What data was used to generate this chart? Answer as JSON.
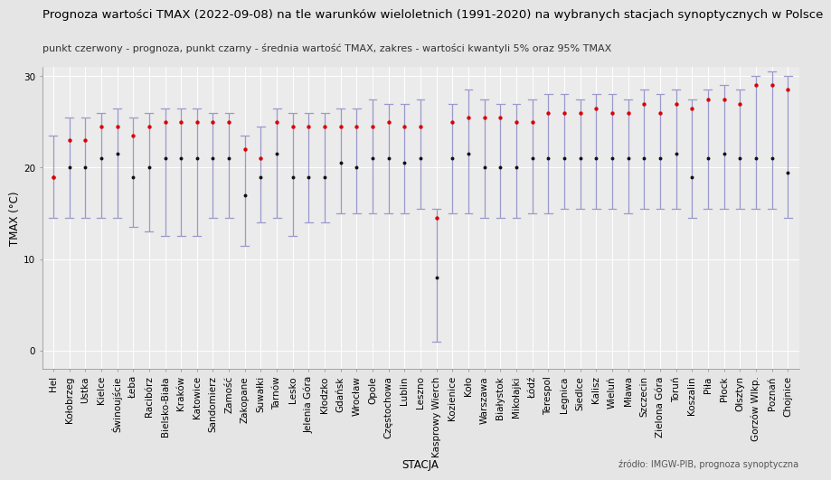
{
  "title": "Prognoza wartości TMAX (2022-09-08) na tle warunków wieloletnich (1991-2020) na wybranych stacjach synoptycznych w Polsce",
  "subtitle": "punkt czerwony - prognoza, punkt czarny - średnia wartość TMAX, zakres - wartości kwantyli 5% oraz 95% TMAX",
  "xlabel": "STACJA",
  "ylabel": "TMAX (°C)",
  "source": "źródło: IMGW-PIB, prognoza synoptyczna",
  "ylim": [
    -2,
    31
  ],
  "yticks": [
    0,
    10,
    20,
    30
  ],
  "fig_bg": "#e5e5e5",
  "plot_bg": "#ebebeb",
  "grid_color": "#ffffff",
  "stations": [
    "Hel",
    "Kołobrzeg",
    "Ustka",
    "Kielce",
    "Świnoujście",
    "Łeba",
    "Racibórz",
    "Bielsko-Biała",
    "Kraków",
    "Katowice",
    "Sandomierz",
    "Zamość",
    "Zakopane",
    "Suwałki",
    "Tarnów",
    "Lesko",
    "Jelenia Góra",
    "Kłodzko",
    "Gdańsk",
    "Wrocław",
    "Opole",
    "Częstochowa",
    "Lublin",
    "Leszno",
    "Kasprowy Wierch",
    "Kozienice",
    "Koło",
    "Warszawa",
    "Białystok",
    "Mikołajki",
    "Łódź",
    "Terespol",
    "Legnica",
    "Siedlce",
    "Kalisz",
    "Wieluń",
    "Mława",
    "Szczecin",
    "Zielona Góra",
    "Toruń",
    "Koszalin",
    "Piła",
    "Płock",
    "Olsztyn",
    "Gorzów Wlkp.",
    "Poznań",
    "Chojnice"
  ],
  "forecast": [
    19.0,
    23.0,
    23.0,
    24.5,
    24.5,
    23.5,
    24.5,
    25.0,
    25.0,
    25.0,
    25.0,
    25.0,
    22.0,
    21.0,
    25.0,
    24.5,
    24.5,
    24.5,
    24.5,
    24.5,
    24.5,
    25.0,
    24.5,
    24.5,
    14.5,
    25.0,
    25.5,
    25.5,
    25.5,
    25.0,
    25.0,
    26.0,
    26.0,
    26.0,
    26.5,
    26.0,
    26.0,
    27.0,
    26.0,
    27.0,
    26.5,
    27.5,
    27.5,
    27.0,
    29.0,
    29.0,
    28.5
  ],
  "mean": [
    19.0,
    20.0,
    20.0,
    21.0,
    21.5,
    19.0,
    20.0,
    21.0,
    21.0,
    21.0,
    21.0,
    21.0,
    17.0,
    19.0,
    21.5,
    19.0,
    19.0,
    19.0,
    20.5,
    20.0,
    21.0,
    21.0,
    20.5,
    21.0,
    8.0,
    21.0,
    21.5,
    20.0,
    20.0,
    20.0,
    21.0,
    21.0,
    21.0,
    21.0,
    21.0,
    21.0,
    21.0,
    21.0,
    21.0,
    21.5,
    19.0,
    21.0,
    21.5,
    21.0,
    21.0,
    21.0,
    19.5
  ],
  "q5": [
    14.5,
    14.5,
    14.5,
    14.5,
    14.5,
    13.5,
    13.0,
    12.5,
    12.5,
    12.5,
    14.5,
    14.5,
    11.5,
    14.0,
    14.5,
    12.5,
    14.0,
    14.0,
    15.0,
    15.0,
    15.0,
    15.0,
    15.0,
    15.5,
    1.0,
    15.0,
    15.0,
    14.5,
    14.5,
    14.5,
    15.0,
    15.0,
    15.5,
    15.5,
    15.5,
    15.5,
    15.0,
    15.5,
    15.5,
    15.5,
    14.5,
    15.5,
    15.5,
    15.5,
    15.5,
    15.5,
    14.5
  ],
  "q95": [
    23.5,
    25.5,
    25.5,
    26.0,
    26.5,
    25.5,
    26.0,
    26.5,
    26.5,
    26.5,
    26.0,
    26.0,
    23.5,
    24.5,
    26.5,
    26.0,
    26.0,
    26.0,
    26.5,
    26.5,
    27.5,
    27.0,
    27.0,
    27.5,
    15.5,
    27.0,
    28.5,
    27.5,
    27.0,
    27.0,
    27.5,
    28.0,
    28.0,
    27.5,
    28.0,
    28.0,
    27.5,
    28.5,
    28.0,
    28.5,
    27.5,
    28.5,
    29.0,
    28.5,
    30.0,
    30.5,
    30.0
  ],
  "dot_red": "#dd0000",
  "dot_black": "#111111",
  "bar_color": "#9999cc",
  "title_fontsize": 9.5,
  "subtitle_fontsize": 8.0,
  "label_fontsize": 8.5,
  "tick_fontsize": 7.5,
  "source_fontsize": 7.0
}
